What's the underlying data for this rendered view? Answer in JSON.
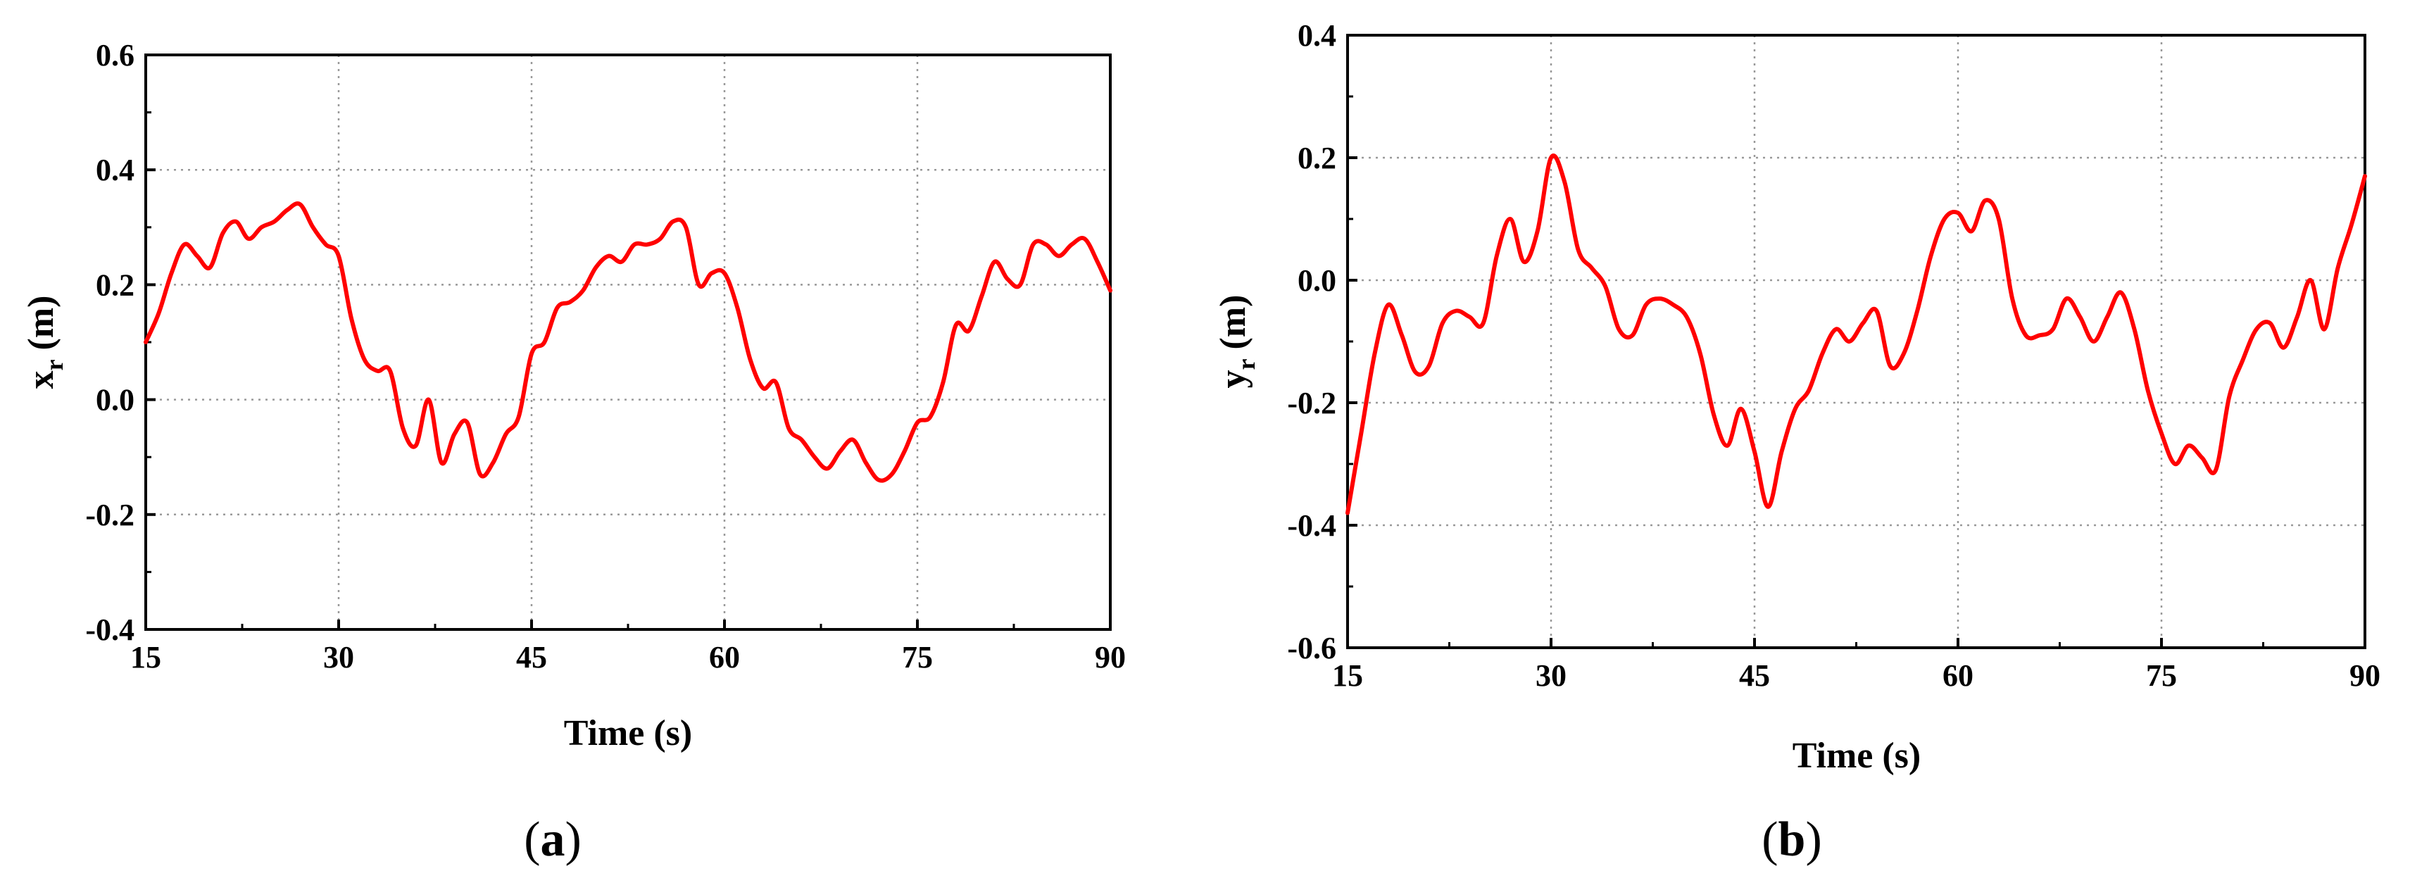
{
  "colors": {
    "line": "#ff0000",
    "grid": "#999999",
    "axis": "#000000"
  },
  "chart_data": [
    {
      "id": "a",
      "panel_label_pre": "(",
      "panel_label_letter": "a",
      "panel_label_post": ")",
      "type": "line",
      "title": "",
      "xlabel": "Time (s)",
      "ylabel_main": "x",
      "ylabel_sub": "r",
      "ylabel_unit": " (m)",
      "xlim": [
        15,
        90
      ],
      "ylim": [
        -0.4,
        0.6
      ],
      "xticks": [
        15,
        30,
        45,
        60,
        75,
        90
      ],
      "yticks": [
        -0.4,
        -0.2,
        0.0,
        0.2,
        0.4,
        0.6
      ],
      "xtick_labels": [
        "15",
        "30",
        "45",
        "60",
        "75",
        "90"
      ],
      "ytick_labels": [
        "-0.4",
        "-0.2",
        "0.0",
        "0.2",
        "0.4",
        "0.6"
      ],
      "grid": true,
      "series": [
        {
          "color": "#ff0000",
          "x": [
            15,
            16,
            17,
            18,
            19,
            20,
            21,
            22,
            23,
            24,
            25,
            26,
            27,
            28,
            29,
            30,
            31,
            32,
            33,
            34,
            35,
            36,
            37,
            38,
            39,
            40,
            41,
            42,
            43,
            44,
            45,
            46,
            47,
            48,
            49,
            50,
            51,
            52,
            53,
            54,
            55,
            56,
            57,
            58,
            59,
            60,
            61,
            62,
            63,
            64,
            65,
            66,
            67,
            68,
            69,
            70,
            71,
            72,
            73,
            74,
            75,
            76,
            77,
            78,
            79,
            80,
            81,
            82,
            83,
            84,
            85,
            86,
            87,
            88,
            89,
            90
          ],
          "y": [
            0.1,
            0.15,
            0.22,
            0.27,
            0.25,
            0.23,
            0.29,
            0.31,
            0.28,
            0.3,
            0.31,
            0.33,
            0.34,
            0.3,
            0.27,
            0.25,
            0.14,
            0.07,
            0.05,
            0.05,
            -0.05,
            -0.08,
            0.0,
            -0.11,
            -0.06,
            -0.04,
            -0.13,
            -0.11,
            -0.06,
            -0.03,
            0.08,
            0.1,
            0.16,
            0.17,
            0.19,
            0.23,
            0.25,
            0.24,
            0.27,
            0.27,
            0.28,
            0.31,
            0.3,
            0.2,
            0.22,
            0.22,
            0.16,
            0.07,
            0.02,
            0.03,
            -0.05,
            -0.07,
            -0.1,
            -0.12,
            -0.09,
            -0.07,
            -0.11,
            -0.14,
            -0.13,
            -0.09,
            -0.04,
            -0.03,
            0.03,
            0.13,
            0.12,
            0.18,
            0.24,
            0.21,
            0.2,
            0.27,
            0.27,
            0.25,
            0.27,
            0.28,
            0.24,
            0.19
          ]
        }
      ]
    },
    {
      "id": "b",
      "panel_label_pre": "(",
      "panel_label_letter": "b",
      "panel_label_post": ")",
      "type": "line",
      "title": "",
      "xlabel": "Time (s)",
      "ylabel_main": "y",
      "ylabel_sub": "r",
      "ylabel_unit": " (m)",
      "xlim": [
        15,
        90
      ],
      "ylim": [
        -0.6,
        0.4
      ],
      "xticks": [
        15,
        30,
        45,
        60,
        75,
        90
      ],
      "yticks": [
        -0.6,
        -0.4,
        -0.2,
        0.0,
        0.2,
        0.4
      ],
      "xtick_labels": [
        "15",
        "30",
        "45",
        "60",
        "75",
        "90"
      ],
      "ytick_labels": [
        "-0.6",
        "-0.4",
        "-0.2",
        "0.0",
        "0.2",
        "0.4"
      ],
      "grid": true,
      "series": [
        {
          "color": "#ff0000",
          "x": [
            15,
            16,
            17,
            18,
            19,
            20,
            21,
            22,
            23,
            24,
            25,
            26,
            27,
            28,
            29,
            30,
            31,
            32,
            33,
            34,
            35,
            36,
            37,
            38,
            39,
            40,
            41,
            42,
            43,
            44,
            45,
            46,
            47,
            48,
            49,
            50,
            51,
            52,
            53,
            54,
            55,
            56,
            57,
            58,
            59,
            60,
            61,
            62,
            63,
            64,
            65,
            66,
            67,
            68,
            69,
            70,
            71,
            72,
            73,
            74,
            75,
            76,
            77,
            78,
            79,
            80,
            81,
            82,
            83,
            84,
            85,
            86,
            87,
            88,
            89,
            90
          ],
          "y": [
            -0.38,
            -0.25,
            -0.12,
            -0.04,
            -0.09,
            -0.15,
            -0.14,
            -0.07,
            -0.05,
            -0.06,
            -0.07,
            0.04,
            0.1,
            0.03,
            0.08,
            0.2,
            0.16,
            0.05,
            0.02,
            -0.01,
            -0.08,
            -0.09,
            -0.04,
            -0.03,
            -0.04,
            -0.06,
            -0.12,
            -0.22,
            -0.27,
            -0.21,
            -0.28,
            -0.37,
            -0.28,
            -0.21,
            -0.18,
            -0.12,
            -0.08,
            -0.1,
            -0.07,
            -0.05,
            -0.14,
            -0.12,
            -0.05,
            0.04,
            0.1,
            0.11,
            0.08,
            0.13,
            0.1,
            -0.03,
            -0.09,
            -0.09,
            -0.08,
            -0.03,
            -0.06,
            -0.1,
            -0.06,
            -0.02,
            -0.08,
            -0.18,
            -0.25,
            -0.3,
            -0.27,
            -0.29,
            -0.31,
            -0.19,
            -0.13,
            -0.08,
            -0.07,
            -0.11,
            -0.06,
            0.0,
            -0.08,
            0.02,
            0.09,
            0.17
          ]
        }
      ]
    }
  ]
}
